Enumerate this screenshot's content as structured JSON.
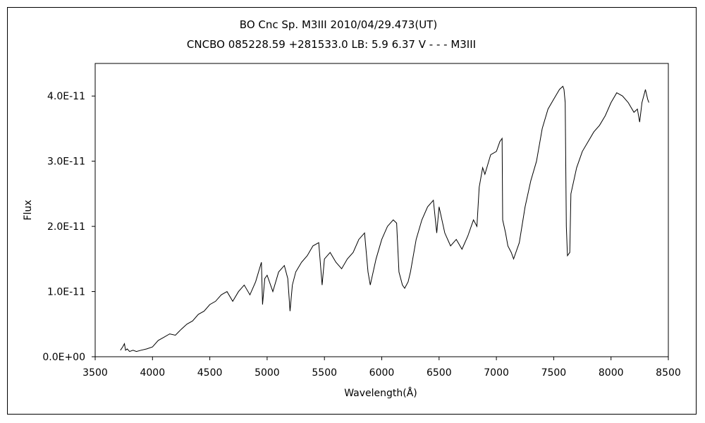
{
  "chart_data": {
    "type": "line",
    "title": "BO Cnc    Sp. M3III    2010/04/29.473(UT)",
    "subtitle": "CNCBO 085228.59 +281533.0 LB: 5.9 6.37 V - - - M3III",
    "xlabel": "Wavelength(Å)",
    "ylabel": "Flux",
    "xlim": [
      3500,
      8500
    ],
    "ylim": [
      0,
      4.5e-11
    ],
    "x_ticks": [
      3500,
      4000,
      4500,
      5000,
      5500,
      6000,
      6500,
      7000,
      7500,
      8000,
      8500
    ],
    "y_ticks": [
      0,
      1e-11,
      2e-11,
      3e-11,
      4e-11
    ],
    "x_tick_labels": [
      "3500",
      "4000",
      "4500",
      "5000",
      "5500",
      "6000",
      "6500",
      "7000",
      "7500",
      "8000",
      "8500"
    ],
    "y_tick_labels": [
      "0.0E+00",
      "1.0E-11",
      "2.0E-11",
      "3.0E-11",
      "4.0E-11"
    ],
    "grid": false,
    "legend": "none",
    "line_color": "#000000",
    "series": [
      {
        "x": [
          3720,
          3740,
          3755,
          3765,
          3780,
          3800,
          3830,
          3860,
          3900,
          3950,
          4000,
          4050,
          4100,
          4150,
          4200,
          4250,
          4300,
          4350,
          4400,
          4450,
          4500,
          4550,
          4600,
          4650,
          4700,
          4750,
          4800,
          4850,
          4900,
          4950,
          4960,
          4980,
          5000,
          5050,
          5100,
          5150,
          5180,
          5200,
          5220,
          5250,
          5300,
          5350,
          5400,
          5450,
          5480,
          5500,
          5550,
          5600,
          5650,
          5700,
          5750,
          5800,
          5850,
          5880,
          5900,
          5950,
          6000,
          6050,
          6100,
          6130,
          6150,
          6180,
          6200,
          6230,
          6250,
          6300,
          6350,
          6400,
          6450,
          6480,
          6500,
          6550,
          6600,
          6650,
          6700,
          6750,
          6800,
          6830,
          6850,
          6880,
          6900,
          6950,
          7000,
          7030,
          7050,
          7055,
          7080,
          7100,
          7130,
          7150,
          7200,
          7250,
          7300,
          7350,
          7400,
          7450,
          7500,
          7550,
          7580,
          7590,
          7600,
          7610,
          7620,
          7640,
          7650,
          7700,
          7750,
          7800,
          7850,
          7900,
          7950,
          8000,
          8050,
          8100,
          8150,
          8200,
          8230,
          8250,
          8270,
          8300,
          8320,
          8330
        ],
        "y": [
          1e-12,
          1.5e-12,
          2e-12,
          1e-12,
          1.2e-12,
          8e-13,
          1e-12,
          8e-13,
          1e-12,
          1.2e-12,
          1.5e-12,
          2.5e-12,
          3e-12,
          3.5e-12,
          3.3e-12,
          4.2e-12,
          5e-12,
          5.5e-12,
          6.5e-12,
          7e-12,
          8e-12,
          8.5e-12,
          9.5e-12,
          1e-11,
          8.5e-12,
          1e-11,
          1.1e-11,
          9.5e-12,
          1.15e-11,
          1.45e-11,
          8e-12,
          1.2e-11,
          1.25e-11,
          1e-11,
          1.3e-11,
          1.4e-11,
          1.2e-11,
          7e-12,
          1.1e-11,
          1.3e-11,
          1.45e-11,
          1.55e-11,
          1.7e-11,
          1.75e-11,
          1.1e-11,
          1.5e-11,
          1.6e-11,
          1.45e-11,
          1.35e-11,
          1.5e-11,
          1.6e-11,
          1.8e-11,
          1.9e-11,
          1.3e-11,
          1.1e-11,
          1.5e-11,
          1.8e-11,
          2e-11,
          2.1e-11,
          2.05e-11,
          1.3e-11,
          1.1e-11,
          1.05e-11,
          1.15e-11,
          1.3e-11,
          1.8e-11,
          2.1e-11,
          2.3e-11,
          2.4e-11,
          1.9e-11,
          2.3e-11,
          1.9e-11,
          1.7e-11,
          1.8e-11,
          1.65e-11,
          1.85e-11,
          2.1e-11,
          2e-11,
          2.6e-11,
          2.9e-11,
          2.8e-11,
          3.1e-11,
          3.15e-11,
          3.3e-11,
          3.35e-11,
          2.1e-11,
          1.9e-11,
          1.7e-11,
          1.6e-11,
          1.5e-11,
          1.75e-11,
          2.3e-11,
          2.7e-11,
          3e-11,
          3.5e-11,
          3.8e-11,
          3.95e-11,
          4.1e-11,
          4.15e-11,
          4.1e-11,
          3.9e-11,
          2e-11,
          1.55e-11,
          1.6e-11,
          2.5e-11,
          2.9e-11,
          3.15e-11,
          3.3e-11,
          3.45e-11,
          3.55e-11,
          3.7e-11,
          3.9e-11,
          4.05e-11,
          4e-11,
          3.9e-11,
          3.75e-11,
          3.8e-11,
          3.6e-11,
          3.9e-11,
          4.1e-11,
          3.95e-11,
          3.9e-11
        ]
      }
    ]
  }
}
